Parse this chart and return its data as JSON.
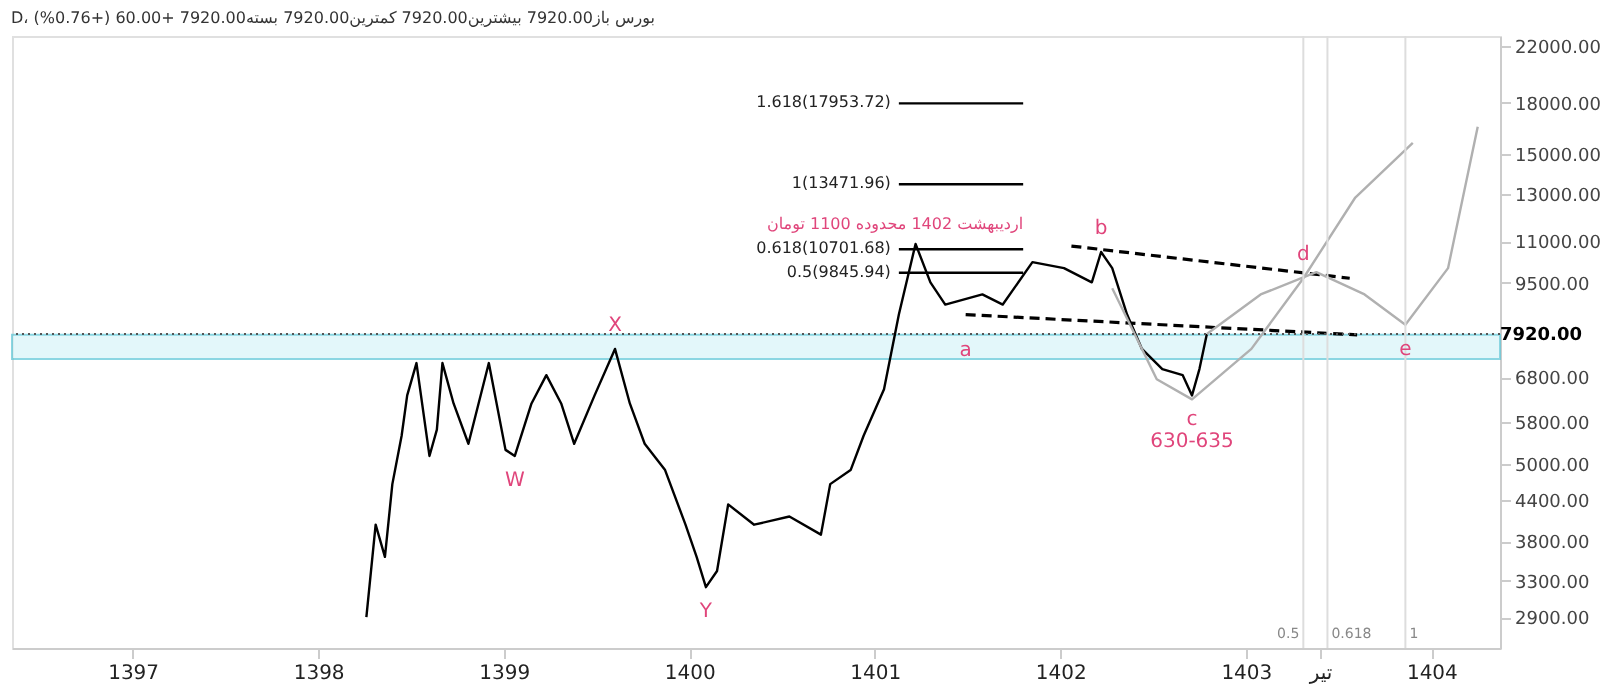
{
  "chart_data": {
    "type": "line",
    "title": "D، بورس  باز7920.00  بیشترین7920.00  کمترین7920.00  بسته7920.00  +60.00 (+0.76%)",
    "xlim": [
      1396.35,
      1404.37
    ],
    "ylim": [
      2600,
      22800
    ],
    "log": "y",
    "grid": false,
    "xticks": [
      1397,
      1398,
      1399,
      1400,
      1401,
      1402,
      1403,
      {
        "value": 1403.4,
        "label": "تیر"
      },
      1404
    ],
    "yticks": [
      {
        "value": 22000,
        "label": "22000.00"
      },
      {
        "value": 18000,
        "label": "18000.00"
      },
      {
        "value": 15000,
        "label": "15000.00"
      },
      {
        "value": 13000,
        "label": "13000.00"
      },
      {
        "value": 11000,
        "label": "11000.00"
      },
      {
        "value": 9500,
        "label": "9500.00"
      },
      {
        "value": 6800,
        "label": "6800.00"
      },
      {
        "value": 5800,
        "label": "5800.00"
      },
      {
        "value": 5000,
        "label": "5000.00"
      },
      {
        "value": 4400,
        "label": "4400.00"
      },
      {
        "value": 3800,
        "label": "3800.00"
      },
      {
        "value": 3300,
        "label": "3300.00"
      },
      {
        "value": 2900,
        "label": "2900.00"
      }
    ],
    "series": [
      {
        "color": "#000000",
        "x": [
          1398.26,
          1398.31,
          1398.36,
          1398.4,
          1398.45,
          1398.48,
          1398.53,
          1398.6,
          1398.64,
          1398.67,
          1398.73,
          1398.81,
          1398.92,
          1399.01,
          1399.06,
          1399.15,
          1399.23,
          1399.31,
          1399.38,
          1399.49,
          1399.6,
          1399.68,
          1399.76,
          1399.87,
          1399.98,
          1400.04,
          1400.09,
          1400.15,
          1400.21,
          1400.35,
          1400.54,
          1400.71,
          1400.76,
          1400.87,
          1400.94,
          1401.05,
          1401.13,
          1401.22,
          1401.3,
          1401.38,
          1401.58,
          1401.69,
          1401.85,
          1402.02,
          1402.17,
          1402.22,
          1402.28,
          1402.36,
          1402.44,
          1402.55,
          1402.66,
          1402.71,
          1402.75,
          1402.79
        ],
        "values": [
          2900,
          4027,
          3593,
          4650,
          5521,
          6371,
          7145,
          5139,
          5641,
          7145,
          6191,
          5366,
          7145,
          5251,
          5139,
          6191,
          6845,
          6191,
          5366,
          6371,
          7513,
          6191,
          5366,
          4888,
          4027,
          3593,
          3226,
          3417,
          4327,
          4027,
          4145,
          3887,
          4650,
          4888,
          5521,
          6509,
          8486,
          10903,
          9515,
          8793,
          9115,
          8793,
          10223,
          10006,
          9515,
          10595,
          10006,
          8486,
          7513,
          6994,
          6845,
          6371,
          6994,
          7920
        ]
      },
      {
        "type": "line",
        "color": "#000000",
        "x": [
          1401.13,
          1401.8
        ],
        "values": [
          17953.72,
          17953.72
        ]
      },
      {
        "type": "line",
        "color": "#000000",
        "x": [
          1401.13,
          1401.8
        ],
        "values": [
          13471.96,
          13471.96
        ]
      },
      {
        "type": "line",
        "color": "#000000",
        "x": [
          1401.13,
          1401.8
        ],
        "values": [
          10701.68,
          10701.68
        ]
      },
      {
        "type": "line",
        "color": "#000000",
        "x": [
          1401.13,
          1401.8
        ],
        "values": [
          9845.94,
          9845.94
        ]
      },
      {
        "type": "line",
        "color": "#000000",
        "line_style": "dashed",
        "x": [
          1402.06,
          1403.56
        ],
        "values": [
          10822,
          9654
        ]
      },
      {
        "type": "line",
        "color": "#000000",
        "line_style": "dashed",
        "x": [
          1401.49,
          1403.6
        ],
        "values": [
          8486,
          7898
        ]
      },
      {
        "type": "line",
        "color": "#b0b0b0",
        "x": [
          1402.28,
          1402.52,
          1402.71,
          1403.03,
          1403.31,
          1403.59,
          1403.9
        ],
        "values": [
          9314,
          6747,
          6281,
          7513,
          9654,
          12855,
          15600
        ]
      },
      {
        "type": "line",
        "color": "#b0b0b0",
        "x": [
          1402.79,
          1403.08,
          1403.38,
          1403.64,
          1403.86,
          1404.09,
          1404.25
        ],
        "values": [
          7920,
          9115,
          9863,
          9115,
          8187,
          10006,
          16520
        ]
      }
    ],
    "bands": [
      {
        "axis": "y",
        "from": 7249,
        "to": 7898,
        "color": "#d8f4f8"
      }
    ],
    "ref_lines": [
      {
        "axis": "y",
        "value": 7920,
        "label": "7920.00",
        "color": "#555555",
        "line_style": "dotted"
      },
      {
        "axis": "x",
        "value": 1403.31,
        "color": "#dddddd"
      },
      {
        "axis": "x",
        "value": 1403.44,
        "color": "#dddddd"
      },
      {
        "axis": "x",
        "value": 1403.86,
        "color": "#dddddd"
      }
    ],
    "annotations": [
      {
        "text": "1.618(17953.72)",
        "x": 1401.13,
        "y": 17953.72
      },
      {
        "text": "1(13471.96)",
        "x": 1401.13,
        "y": 13471.96
      },
      {
        "text": "0.618(10701.68)",
        "x": 1401.13,
        "y": 10701.68
      },
      {
        "text": "0.5(9845.94)",
        "x": 1401.13,
        "y": 9845.94
      },
      {
        "text": "اردیبهشت 1402 محدوده 1100 تومان",
        "x": 1401.8,
        "y": 10701.68
      },
      {
        "text": "X",
        "x": 1399.6,
        "y": 7513
      },
      {
        "text": "W",
        "x": 1399.06,
        "y": 5139
      },
      {
        "text": "Y",
        "x": 1400.09,
        "y": 3226
      },
      {
        "text": "a",
        "x": 1401.49,
        "y": 7491
      },
      {
        "text": "b",
        "x": 1402.22,
        "y": 10595
      },
      {
        "text": "c",
        "x": 1402.71,
        "y": 6371
      },
      {
        "text": "630-635",
        "x": 1402.71,
        "y": 6371
      },
      {
        "text": "d",
        "x": 1403.31,
        "y": 9654
      },
      {
        "text": "e",
        "x": 1403.86,
        "y": 8187
      },
      "0.5",
      "0.618",
      "1"
    ]
  }
}
